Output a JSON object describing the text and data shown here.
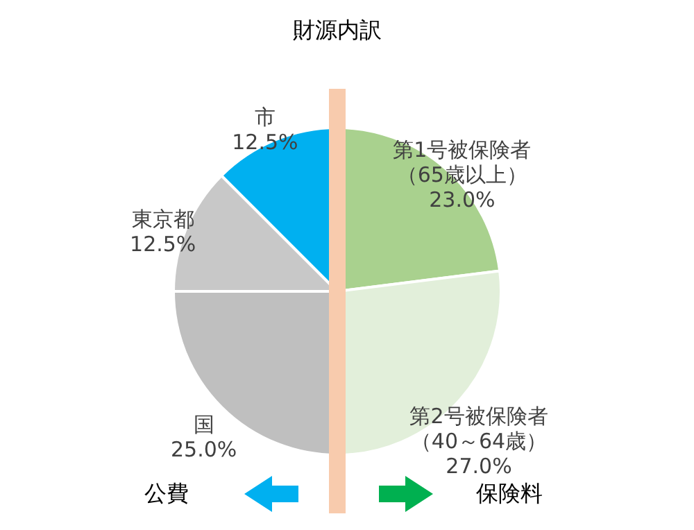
{
  "chart_data": {
    "type": "pie",
    "title": "財源内訳",
    "categories": [
      "第1号被保険者（65歳以上）",
      "第2号被保険者（40～64歳）",
      "国",
      "東京都",
      "市"
    ],
    "values": [
      23.0,
      27.0,
      25.0,
      12.5,
      12.5
    ],
    "value_labels": [
      "23.0%",
      "27.0%",
      "25.0%",
      "12.5%",
      "12.5%"
    ],
    "colors": [
      "#a9d18e",
      "#e2efda",
      "#bfbfbf",
      "#c8c8c8",
      "#00b0f0"
    ],
    "annotations": [
      "公費",
      "保険料"
    ]
  }
}
